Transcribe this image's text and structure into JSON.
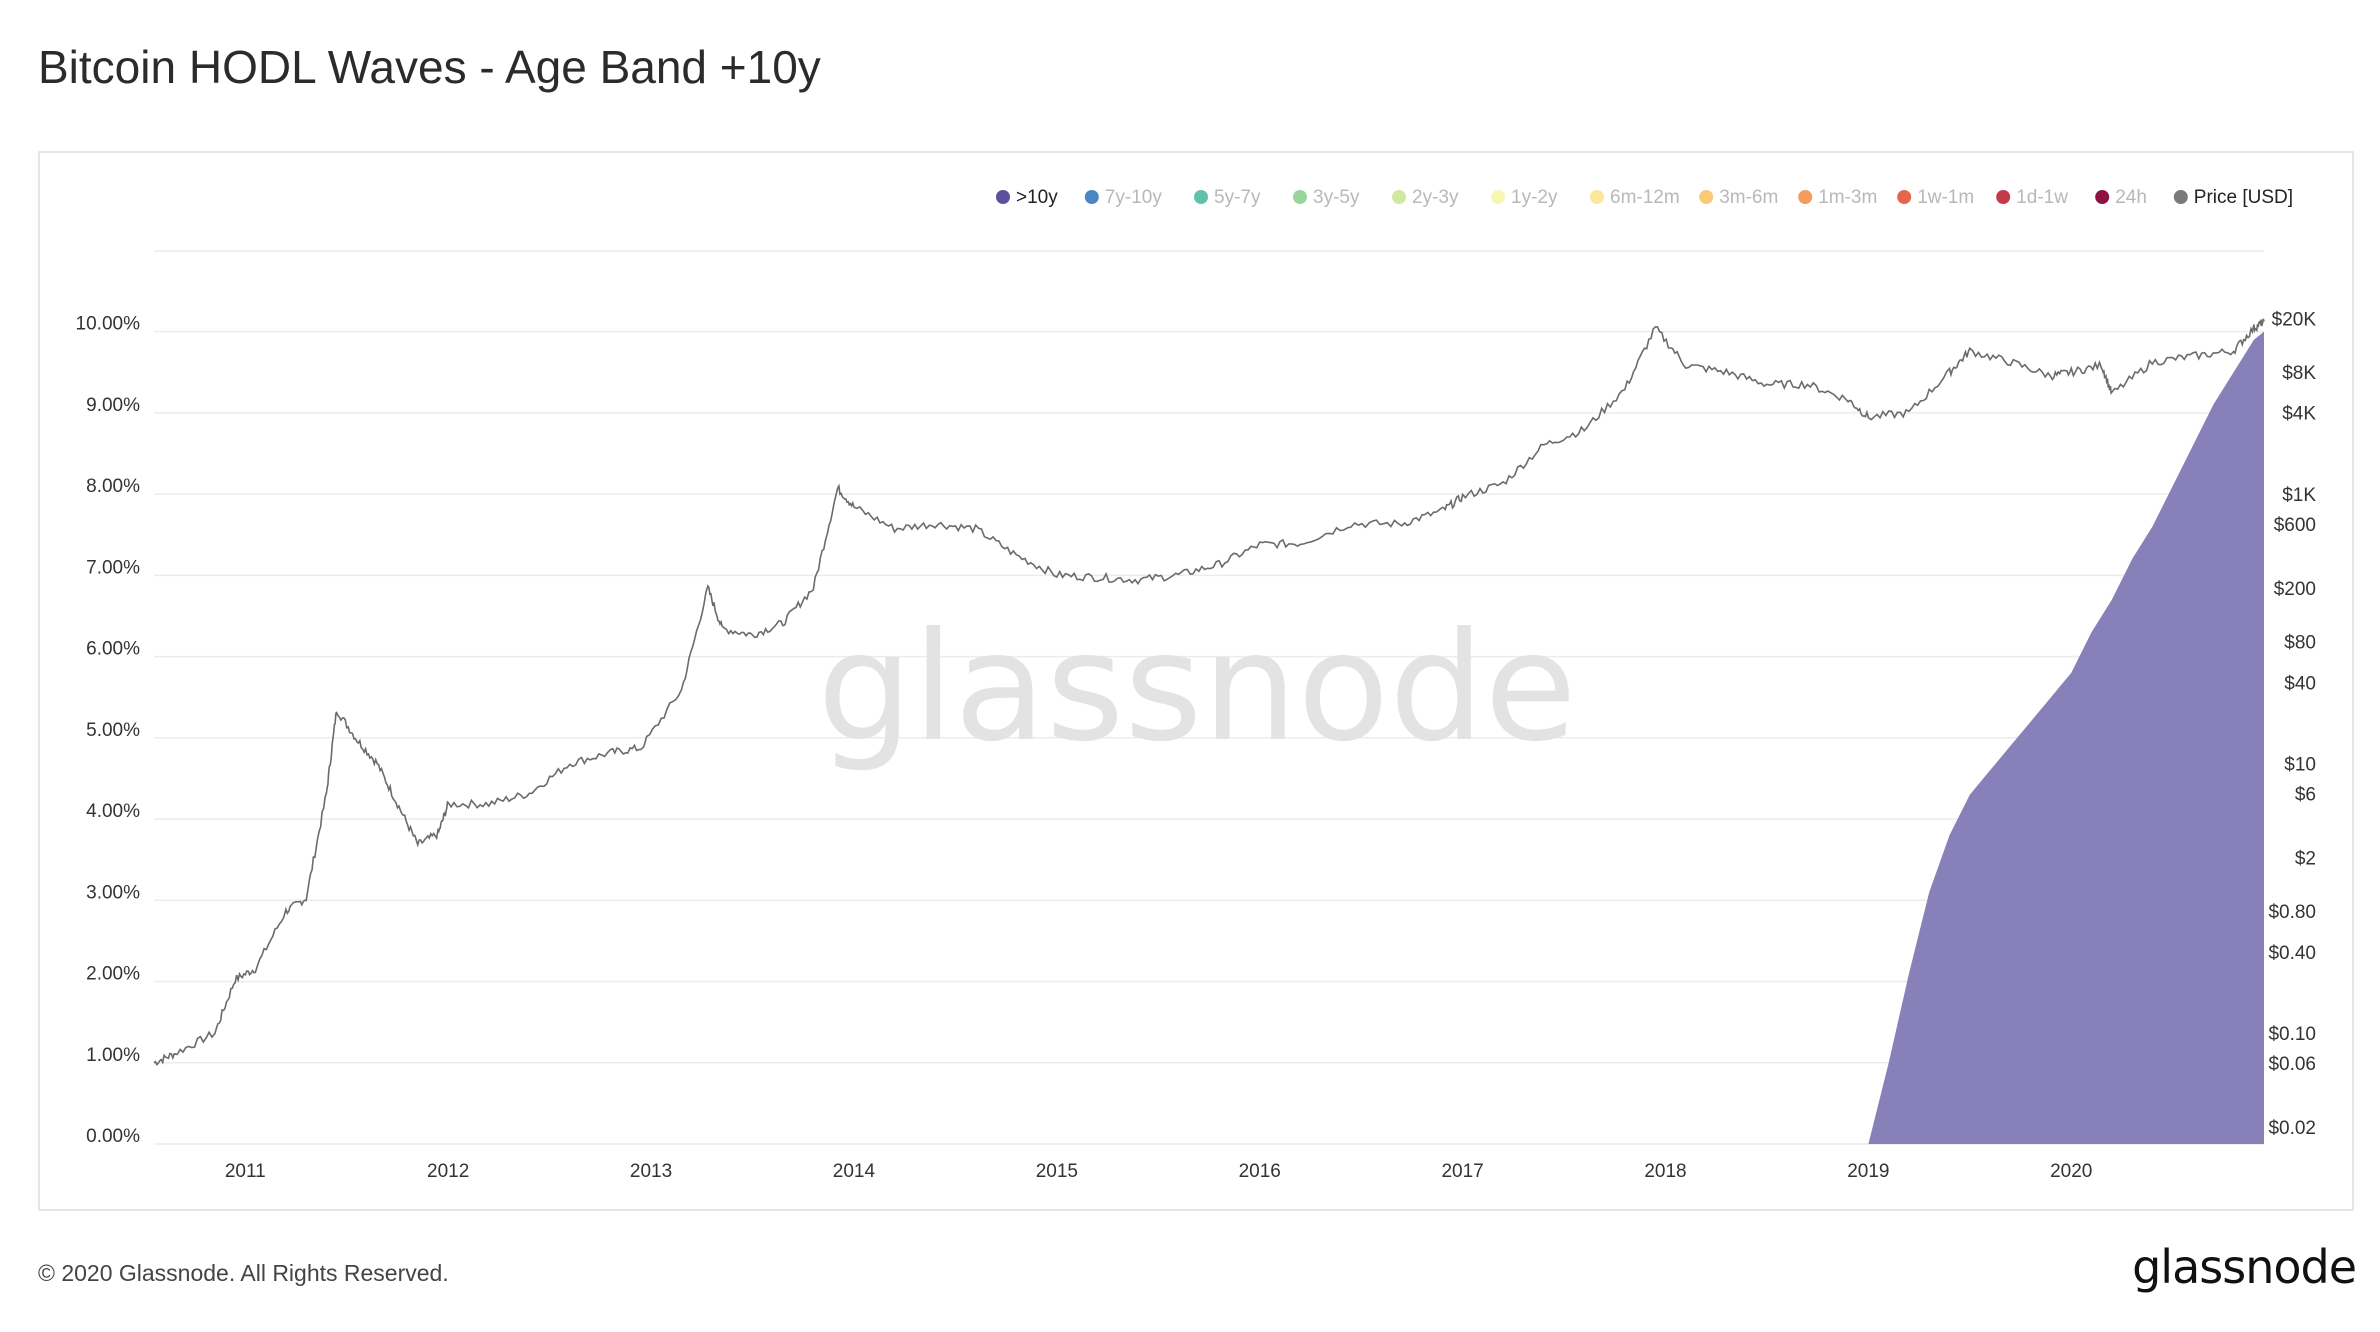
{
  "title": "Bitcoin HODL Waves - Age Band +10y",
  "copyright": "© 2020 Glassnode. All Rights Reserved.",
  "logo_text": "glassnode",
  "watermark": "glassnode",
  "colors": {
    "area_fill": "#8880b8",
    "price_line": "#6b6b6b",
    "grid": "#ececec",
    "watermark": "#e3e3e3"
  },
  "chart_data": {
    "type": "area",
    "title": "Bitcoin HODL Waves - Age Band +10y",
    "grid": true,
    "legend_position": "top-right",
    "x_ticks": [
      "2011",
      "2012",
      "2013",
      "2014",
      "2015",
      "2016",
      "2017",
      "2018",
      "2019",
      "2020"
    ],
    "x_range": [
      2010.55,
      2020.95
    ],
    "left_axis": {
      "ticks": [
        "0.00%",
        "1.00%",
        "2.00%",
        "3.00%",
        "4.00%",
        "5.00%",
        "6.00%",
        "7.00%",
        "8.00%",
        "9.00%",
        "10.00%"
      ],
      "range": [
        0,
        10
      ]
    },
    "right_axis": {
      "scale": "log",
      "ticks": [
        {
          "label": "$0.02",
          "value": 0.02
        },
        {
          "label": "$0.06",
          "value": 0.06
        },
        {
          "label": "$0.10",
          "value": 0.1
        },
        {
          "label": "$0.40",
          "value": 0.4
        },
        {
          "label": "$0.80",
          "value": 0.8
        },
        {
          "label": "$2",
          "value": 2
        },
        {
          "label": "$6",
          "value": 6
        },
        {
          "label": "$10",
          "value": 10
        },
        {
          "label": "$40",
          "value": 40
        },
        {
          "label": "$80",
          "value": 80
        },
        {
          "label": "$200",
          "value": 200
        },
        {
          "label": "$600",
          "value": 600
        },
        {
          "label": "$1K",
          "value": 1000
        },
        {
          "label": "$4K",
          "value": 4000
        },
        {
          "label": "$8K",
          "value": 8000
        },
        {
          "label": "$20K",
          "value": 20000
        }
      ],
      "range": [
        0.02,
        20000
      ]
    },
    "legend": [
      {
        "label": ">10y",
        "color": "#5b4f9e",
        "active": true
      },
      {
        "label": "7y-10y",
        "color": "#4a87c2",
        "active": false
      },
      {
        "label": "5y-7y",
        "color": "#62c0ad",
        "active": false
      },
      {
        "label": "3y-5y",
        "color": "#98d59c",
        "active": false
      },
      {
        "label": "2y-3y",
        "color": "#cfe9a0",
        "active": false
      },
      {
        "label": "1y-2y",
        "color": "#f5f7b3",
        "active": false
      },
      {
        "label": "6m-12m",
        "color": "#fde69a",
        "active": false
      },
      {
        "label": "3m-6m",
        "color": "#fbc978",
        "active": false
      },
      {
        "label": "1m-3m",
        "color": "#f59b5c",
        "active": false
      },
      {
        "label": "1w-1m",
        "color": "#e2674c",
        "active": false
      },
      {
        "label": "1d-1w",
        "color": "#c33b4b",
        "active": false
      },
      {
        "label": "24h",
        "color": "#8e1340",
        "active": false
      },
      {
        "label": "Price [USD]",
        "color": "#7a7a7a",
        "active": true
      }
    ],
    "series": [
      {
        "name": ">10y",
        "axis": "left",
        "points": [
          [
            2019.0,
            0.0
          ],
          [
            2019.1,
            1.0
          ],
          [
            2019.2,
            2.1
          ],
          [
            2019.3,
            3.1
          ],
          [
            2019.4,
            3.8
          ],
          [
            2019.5,
            4.3
          ],
          [
            2019.6,
            4.6
          ],
          [
            2019.7,
            4.9
          ],
          [
            2019.8,
            5.2
          ],
          [
            2019.9,
            5.5
          ],
          [
            2020.0,
            5.8
          ],
          [
            2020.1,
            6.3
          ],
          [
            2020.2,
            6.7
          ],
          [
            2020.3,
            7.2
          ],
          [
            2020.4,
            7.6
          ],
          [
            2020.5,
            8.1
          ],
          [
            2020.6,
            8.6
          ],
          [
            2020.7,
            9.1
          ],
          [
            2020.8,
            9.5
          ],
          [
            2020.9,
            9.9
          ],
          [
            2020.95,
            10.0
          ]
        ]
      },
      {
        "name": "Price [USD]",
        "axis": "right",
        "points": [
          [
            2010.55,
            0.06
          ],
          [
            2010.65,
            0.07
          ],
          [
            2010.85,
            0.1
          ],
          [
            2010.95,
            0.25
          ],
          [
            2011.05,
            0.3
          ],
          [
            2011.2,
            0.8
          ],
          [
            2011.3,
            1.0
          ],
          [
            2011.4,
            6
          ],
          [
            2011.45,
            25
          ],
          [
            2011.55,
            15
          ],
          [
            2011.65,
            10
          ],
          [
            2011.75,
            5
          ],
          [
            2011.85,
            2.5
          ],
          [
            2011.95,
            3
          ],
          [
            2012.0,
            5
          ],
          [
            2012.2,
            5
          ],
          [
            2012.4,
            6
          ],
          [
            2012.6,
            10
          ],
          [
            2012.8,
            12
          ],
          [
            2012.95,
            13
          ],
          [
            2013.15,
            35
          ],
          [
            2013.28,
            200
          ],
          [
            2013.35,
            100
          ],
          [
            2013.5,
            90
          ],
          [
            2013.65,
            110
          ],
          [
            2013.8,
            200
          ],
          [
            2013.92,
            1100
          ],
          [
            2014.0,
            800
          ],
          [
            2014.2,
            550
          ],
          [
            2014.4,
            600
          ],
          [
            2014.6,
            550
          ],
          [
            2014.8,
            350
          ],
          [
            2015.0,
            250
          ],
          [
            2015.2,
            240
          ],
          [
            2015.4,
            230
          ],
          [
            2015.6,
            250
          ],
          [
            2015.8,
            300
          ],
          [
            2016.0,
            420
          ],
          [
            2016.2,
            430
          ],
          [
            2016.45,
            600
          ],
          [
            2016.7,
            600
          ],
          [
            2016.9,
            750
          ],
          [
            2017.0,
            950
          ],
          [
            2017.2,
            1200
          ],
          [
            2017.4,
            2300
          ],
          [
            2017.6,
            3000
          ],
          [
            2017.8,
            6000
          ],
          [
            2017.95,
            17000
          ],
          [
            2018.1,
            9000
          ],
          [
            2018.3,
            8000
          ],
          [
            2018.5,
            6500
          ],
          [
            2018.7,
            6500
          ],
          [
            2018.9,
            5000
          ],
          [
            2019.0,
            3700
          ],
          [
            2019.2,
            4000
          ],
          [
            2019.4,
            8000
          ],
          [
            2019.5,
            11500
          ],
          [
            2019.7,
            9500
          ],
          [
            2019.9,
            7500
          ],
          [
            2020.0,
            8000
          ],
          [
            2020.15,
            9000
          ],
          [
            2020.2,
            5500
          ],
          [
            2020.4,
            9500
          ],
          [
            2020.6,
            10500
          ],
          [
            2020.8,
            11500
          ],
          [
            2020.9,
            17000
          ],
          [
            2020.95,
            19000
          ]
        ]
      }
    ]
  }
}
